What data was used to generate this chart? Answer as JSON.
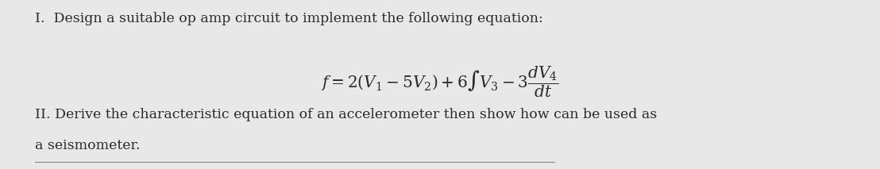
{
  "background_color": "#e8e8e8",
  "text_color": "#2a2a2a",
  "line1": "I.  Design a suitable op amp circuit to implement the following equation:",
  "line3": "II. Derive the characteristic equation of an accelerometer then show how can be used as",
  "line4": "a seismometer.",
  "font_size_text": 12.5,
  "font_size_eq": 14.5,
  "fig_width": 11.08,
  "fig_height": 2.13,
  "dpi": 100,
  "eq": "$f = 2(V_1 - 5V_2) + 6\\int V_3 - 3\\dfrac{dV_4}{dt}$"
}
